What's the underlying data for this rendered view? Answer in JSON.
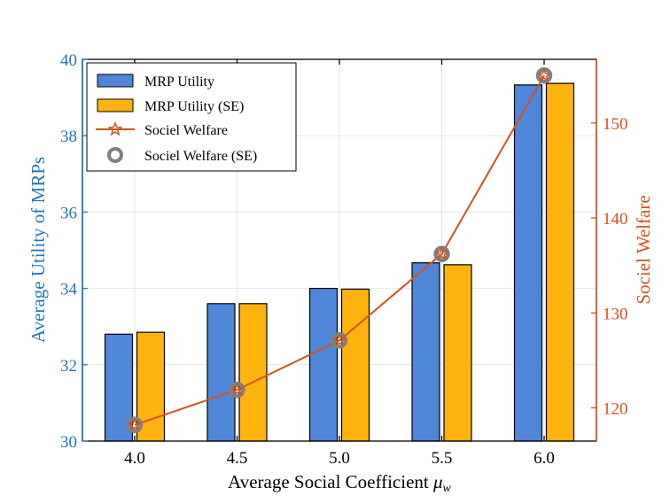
{
  "chart_data": {
    "type": "bar",
    "categories": [
      "4.0",
      "4.5",
      "5.0",
      "5.5",
      "6.0"
    ],
    "x_values": [
      4.0,
      4.5,
      5.0,
      5.5,
      6.0
    ],
    "xlabel_prefix": "Average Social Coefficient ",
    "xlabel_symbol": "μ",
    "xlabel_subscript": "w",
    "ylabel_left": "Average Utility of MRPs",
    "ylabel_right": "Sociel Welfare",
    "ylim_left": [
      30,
      40
    ],
    "yticks_left": [
      30,
      32,
      34,
      36,
      38,
      40
    ],
    "ylim_right": [
      116.5,
      156.7
    ],
    "yticks_right": [
      120,
      130,
      140,
      150
    ],
    "grid": true,
    "legend_position": "top-left",
    "series": [
      {
        "name": "MRP Utility",
        "kind": "bar",
        "axis": "left",
        "color": "#4f86d8",
        "values": [
          32.8,
          33.6,
          34.0,
          34.67,
          39.33
        ]
      },
      {
        "name": "MRP Utility (SE)",
        "kind": "bar",
        "axis": "left",
        "color": "#ffb30f",
        "values": [
          32.85,
          33.6,
          33.98,
          34.62,
          39.37
        ]
      },
      {
        "name": "Sociel Welfare",
        "kind": "line",
        "marker": "star",
        "axis": "right",
        "color": "#d2521e",
        "values": [
          118.2,
          121.9,
          127.1,
          136.2,
          155.0
        ]
      },
      {
        "name": "Sociel Welfare (SE)",
        "kind": "marker",
        "marker": "circle",
        "axis": "right",
        "color": "#808080",
        "values": [
          118.2,
          121.9,
          127.1,
          136.2,
          155.0
        ]
      }
    ],
    "colors": {
      "left_axis": "#1f77b4",
      "right_axis": "#d2521e",
      "grid": "#e6e6e6"
    }
  }
}
